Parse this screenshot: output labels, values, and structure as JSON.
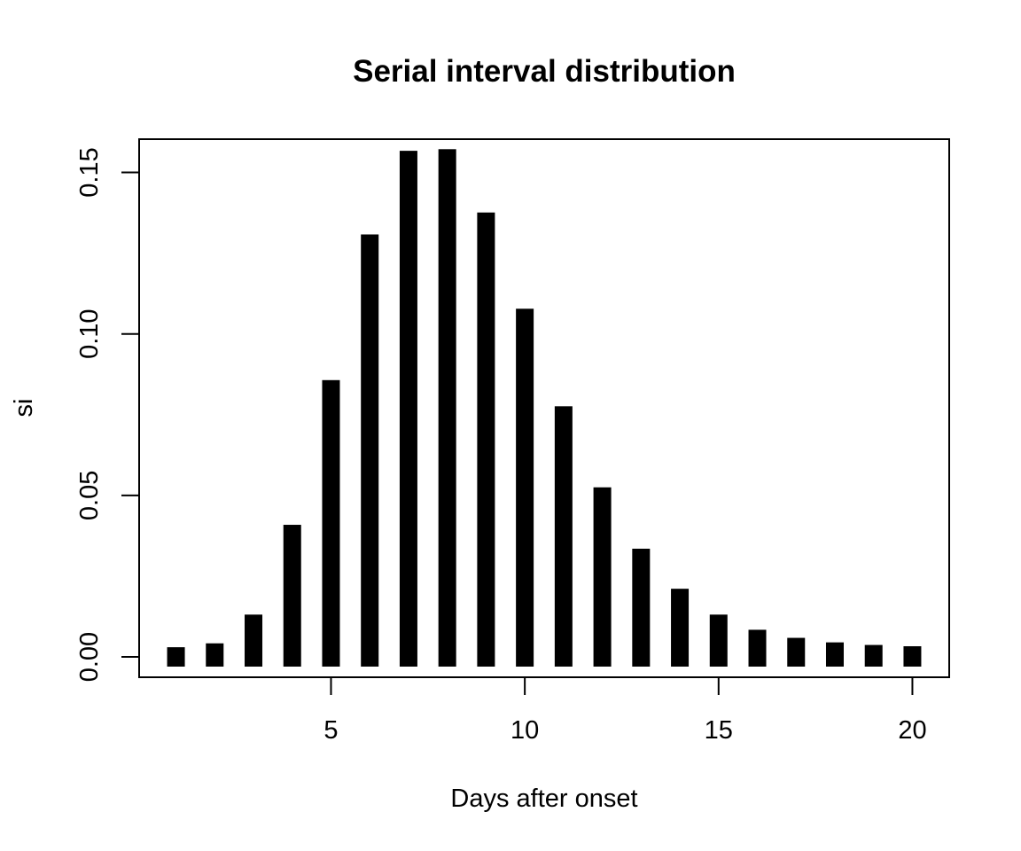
{
  "chart_data": {
    "type": "bar",
    "title": "Serial interval distribution",
    "xlabel": "Days after onset",
    "ylabel": "si",
    "x": [
      1,
      2,
      3,
      4,
      5,
      6,
      7,
      8,
      9,
      10,
      11,
      12,
      13,
      14,
      15,
      16,
      17,
      18,
      19,
      20
    ],
    "values": [
      0.003,
      0.0042,
      0.0131,
      0.0409,
      0.0857,
      0.1308,
      0.1567,
      0.1572,
      0.1376,
      0.1078,
      0.0776,
      0.0525,
      0.0335,
      0.0211,
      0.0131,
      0.0084,
      0.0059,
      0.0045,
      0.0037,
      0.0033
    ],
    "xlim": [
      0.05,
      20.95
    ],
    "ylim": [
      -0.0063,
      0.1603
    ],
    "bar_bottom": -0.003,
    "xticks": [
      5,
      10,
      15,
      20
    ],
    "xtick_labels": [
      "5",
      "10",
      "15",
      "20"
    ],
    "yticks": [
      0.0,
      0.05,
      0.1,
      0.15
    ],
    "ytick_labels": [
      "0.00",
      "0.05",
      "0.10",
      "0.15"
    ],
    "grid": false,
    "bar_color": "#000000"
  }
}
